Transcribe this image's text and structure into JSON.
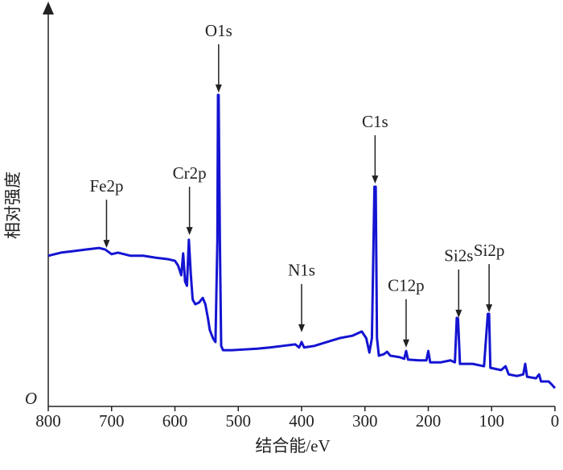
{
  "chart_data": {
    "type": "line",
    "xlabel": "结合能/eV",
    "ylabel": "相对强度",
    "xlim": [
      800,
      0
    ],
    "xticks": [
      800,
      700,
      600,
      500,
      400,
      300,
      200,
      100,
      0
    ],
    "ylim": [
      0,
      100
    ],
    "yticks": [
      {
        "value": 0,
        "label": "O"
      }
    ],
    "series": [
      {
        "color": "#1414d2",
        "x": [
          800,
          780,
          760,
          740,
          720,
          710,
          700,
          690,
          670,
          650,
          630,
          610,
          600,
          595,
          590,
          587,
          584,
          581,
          578,
          575,
          572,
          568,
          562,
          556,
          552,
          548,
          545,
          540,
          536,
          533,
          532,
          531,
          529,
          527,
          524,
          510,
          490,
          470,
          450,
          430,
          410,
          404,
          400,
          396,
          380,
          360,
          340,
          320,
          305,
          298,
          293,
          289,
          285,
          283,
          281,
          278,
          270,
          265,
          260,
          245,
          238,
          235,
          232,
          215,
          203,
          200,
          197,
          180,
          165,
          158,
          155,
          153,
          150,
          130,
          112,
          106,
          104,
          102,
          85,
          78,
          73,
          60,
          50,
          47,
          44,
          30,
          25,
          22,
          10,
          5,
          0
        ],
        "values": [
          38.6,
          39.4,
          39.8,
          40.2,
          40.6,
          40.2,
          39.0,
          39.4,
          38.6,
          38.6,
          38.1,
          37.7,
          37.3,
          36.1,
          33.6,
          39.2,
          32.0,
          30.9,
          42.7,
          34.0,
          27.4,
          26.2,
          26.6,
          27.8,
          26.2,
          22.7,
          19.6,
          17.5,
          16.5,
          42.3,
          79.8,
          79.8,
          42.0,
          15.5,
          14.4,
          14.4,
          14.6,
          14.8,
          15.1,
          15.5,
          15.9,
          15.1,
          16.5,
          15.1,
          15.5,
          16.5,
          17.5,
          18.1,
          19.2,
          17.5,
          13.8,
          17.5,
          56.3,
          56.3,
          17.5,
          13.0,
          13.4,
          14.0,
          13.0,
          12.6,
          12.2,
          14.2,
          12.0,
          11.8,
          11.8,
          14.2,
          11.3,
          11.3,
          11.8,
          11.3,
          22.7,
          22.5,
          10.9,
          10.9,
          10.3,
          23.7,
          23.7,
          9.9,
          9.3,
          10.3,
          8.2,
          7.8,
          8.2,
          10.9,
          7.6,
          7.2,
          8.2,
          6.4,
          6.4,
          5.6,
          4.7
        ]
      }
    ],
    "annotations": [
      {
        "text": "Fe2p",
        "x": 708,
        "y": 40.6
      },
      {
        "text": "Cr2p",
        "x": 577,
        "y": 43.9
      },
      {
        "text": "O1s",
        "x": 531,
        "y": 80.4
      },
      {
        "text": "N1s",
        "x": 400,
        "y": 19.0
      },
      {
        "text": "C1s",
        "x": 284,
        "y": 57.1
      },
      {
        "text": "C12p",
        "x": 235,
        "y": 15.1
      },
      {
        "text": "Si2s",
        "x": 152,
        "y": 22.7
      },
      {
        "text": "Si2p",
        "x": 104,
        "y": 24.1
      }
    ]
  }
}
